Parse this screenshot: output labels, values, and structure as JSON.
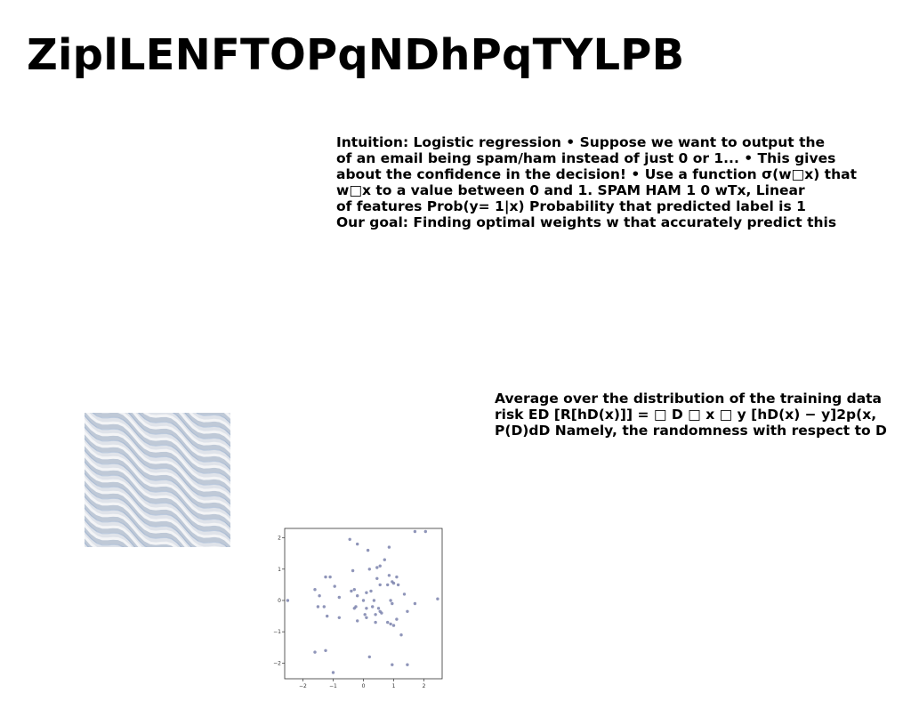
{
  "title": "ZiplLENFTOPqNDhPqTYLPB",
  "paragraph_1": {
    "lines": [
      "Intuition: Logistic regression • Suppose we want to output the",
      "of an email being spam/ham instead of just 0 or 1... • This gives",
      "about the confidence in the decision! • Use a function σ(w□x) that",
      "w□x to a value between 0 and 1. SPAM HAM 1 0 wTx, Linear",
      "of features Prob(y= 1|x) Probability that predicted label is 1",
      "Our goal: Finding optimal weights w that accurately predict this"
    ]
  },
  "paragraph_2": {
    "lines": [
      "Average over the distribution of the training data",
      "risk ED [R[hD(x)]] = □ D □ x □ y [hD(x) − y]2p(x,",
      "P(D)dD Namely, the randomness with respect to D"
    ]
  },
  "texture_image": {
    "colors": {
      "base": "#dfe3ea",
      "highlight": "#f3f4f6",
      "shadow": "#b6c2d2",
      "accent": "#7f9fc8"
    }
  },
  "chart_data": {
    "type": "scatter",
    "xlim": [
      -2.6,
      2.6
    ],
    "ylim": [
      -2.5,
      2.3
    ],
    "xticks": [
      "−2",
      "−1",
      "0",
      "1",
      "2"
    ],
    "yticks": [
      "2",
      "1",
      "0",
      "−1",
      "−2"
    ],
    "grid": false,
    "point_color": "#7b82ad",
    "points": [
      [
        1.7,
        2.2
      ],
      [
        2.05,
        2.2
      ],
      [
        -0.45,
        1.95
      ],
      [
        -0.2,
        1.8
      ],
      [
        0.85,
        1.7
      ],
      [
        0.15,
        1.6
      ],
      [
        0.7,
        1.3
      ],
      [
        0.45,
        1.05
      ],
      [
        0.55,
        1.1
      ],
      [
        -0.35,
        0.95
      ],
      [
        0.2,
        1.0
      ],
      [
        -1.1,
        0.75
      ],
      [
        -1.25,
        0.75
      ],
      [
        0.85,
        0.8
      ],
      [
        1.1,
        0.75
      ],
      [
        0.45,
        0.7
      ],
      [
        0.55,
        0.5
      ],
      [
        0.8,
        0.5
      ],
      [
        1.0,
        0.55
      ],
      [
        0.95,
        0.6
      ],
      [
        1.15,
        0.5
      ],
      [
        -0.95,
        0.45
      ],
      [
        -1.6,
        0.35
      ],
      [
        -0.3,
        0.35
      ],
      [
        0.25,
        0.3
      ],
      [
        0.1,
        0.25
      ],
      [
        -0.4,
        0.3
      ],
      [
        -0.2,
        0.15
      ],
      [
        -1.45,
        0.15
      ],
      [
        -0.8,
        0.1
      ],
      [
        1.35,
        0.2
      ],
      [
        -2.5,
        0.0
      ],
      [
        0.35,
        0.0
      ],
      [
        0.0,
        0.0
      ],
      [
        0.9,
        0.0
      ],
      [
        0.95,
        -0.1
      ],
      [
        1.7,
        -0.1
      ],
      [
        2.45,
        0.05
      ],
      [
        -1.5,
        -0.2
      ],
      [
        -1.3,
        -0.2
      ],
      [
        -0.25,
        -0.2
      ],
      [
        -0.3,
        -0.25
      ],
      [
        0.1,
        -0.25
      ],
      [
        0.3,
        -0.2
      ],
      [
        0.5,
        -0.25
      ],
      [
        0.55,
        -0.35
      ],
      [
        0.6,
        -0.4
      ],
      [
        0.4,
        -0.45
      ],
      [
        1.45,
        -0.35
      ],
      [
        0.05,
        -0.45
      ],
      [
        -1.2,
        -0.5
      ],
      [
        -0.8,
        -0.55
      ],
      [
        0.1,
        -0.55
      ],
      [
        1.1,
        -0.6
      ],
      [
        -0.2,
        -0.65
      ],
      [
        0.4,
        -0.7
      ],
      [
        0.8,
        -0.7
      ],
      [
        0.9,
        -0.75
      ],
      [
        1.0,
        -0.8
      ],
      [
        1.25,
        -1.1
      ],
      [
        -1.25,
        -1.6
      ],
      [
        -1.6,
        -1.65
      ],
      [
        0.2,
        -1.8
      ],
      [
        0.95,
        -2.05
      ],
      [
        1.45,
        -2.05
      ],
      [
        -1.0,
        -2.3
      ]
    ]
  }
}
